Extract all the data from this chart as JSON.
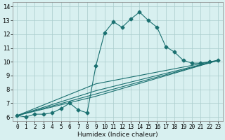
{
  "title": "",
  "xlabel": "Humidex (Indice chaleur)",
  "ylabel": "",
  "bg_color": "#d8f0f0",
  "line_color": "#1a7070",
  "grid_color": "#aacccc",
  "xlim": [
    -0.5,
    23.5
  ],
  "ylim": [
    5.7,
    14.3
  ],
  "xticks": [
    0,
    1,
    2,
    3,
    4,
    5,
    6,
    7,
    8,
    9,
    10,
    11,
    12,
    13,
    14,
    15,
    16,
    17,
    18,
    19,
    20,
    21,
    22,
    23
  ],
  "yticks": [
    6,
    7,
    8,
    9,
    10,
    11,
    12,
    13,
    14
  ],
  "main_curve_x": [
    0,
    1,
    2,
    3,
    4,
    5,
    6,
    7,
    8,
    9,
    10,
    11,
    12,
    13,
    14,
    15,
    16,
    17,
    18,
    19,
    20,
    21,
    22,
    23
  ],
  "main_curve_y": [
    6.1,
    6.0,
    6.2,
    6.2,
    6.3,
    6.6,
    7.0,
    6.5,
    6.3,
    9.7,
    12.1,
    12.9,
    12.5,
    13.1,
    13.6,
    13.0,
    12.5,
    11.1,
    10.7,
    10.1,
    9.9,
    9.9,
    10.0,
    10.1
  ],
  "line2_x": [
    0,
    23
  ],
  "line2_y": [
    6.1,
    10.1
  ],
  "line3_x": [
    0,
    9,
    23
  ],
  "line3_y": [
    6.1,
    8.4,
    10.1
  ],
  "line4_x": [
    0,
    9,
    23
  ],
  "line4_y": [
    6.1,
    7.9,
    10.1
  ],
  "line5_x": [
    0,
    9,
    23
  ],
  "line5_y": [
    6.1,
    7.5,
    10.1
  ],
  "marker": "D",
  "markersize": 2.5,
  "linewidth": 0.8,
  "tick_fontsize": 5.5,
  "xlabel_fontsize": 6.5
}
